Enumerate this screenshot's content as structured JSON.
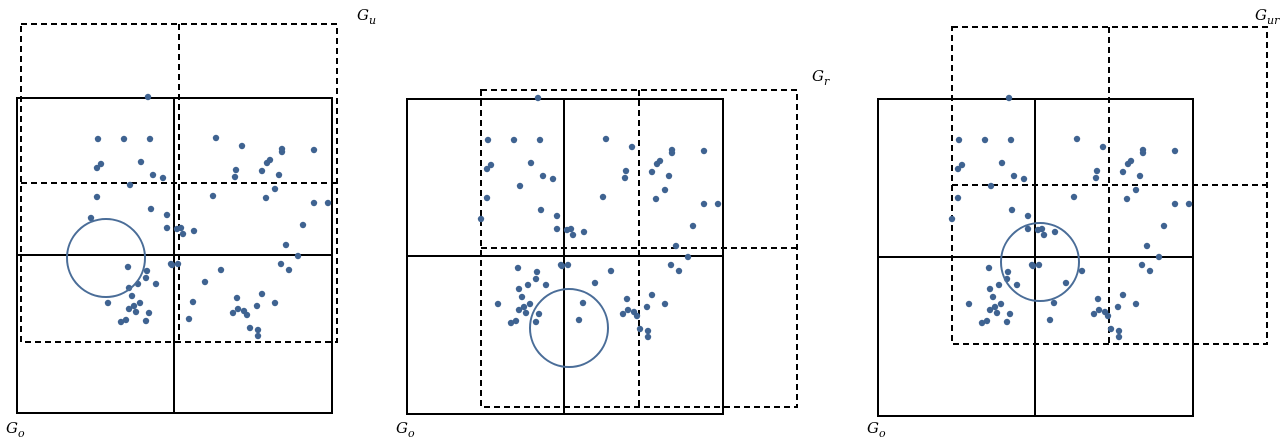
{
  "panels": [
    {
      "id": "u",
      "base_label": "G",
      "base_sub": "o",
      "shift_label": "G",
      "shift_sub": "u"
    },
    {
      "id": "r",
      "base_label": "G",
      "base_sub": "o",
      "shift_label": "G",
      "shift_sub": "r"
    },
    {
      "id": "ur",
      "base_label": "G",
      "base_sub": "o",
      "shift_label": "G",
      "shift_sub": "ur"
    }
  ],
  "colors": {
    "grid": "#000000",
    "point": "#3f6391",
    "query_circle": "#4a6d98"
  }
}
